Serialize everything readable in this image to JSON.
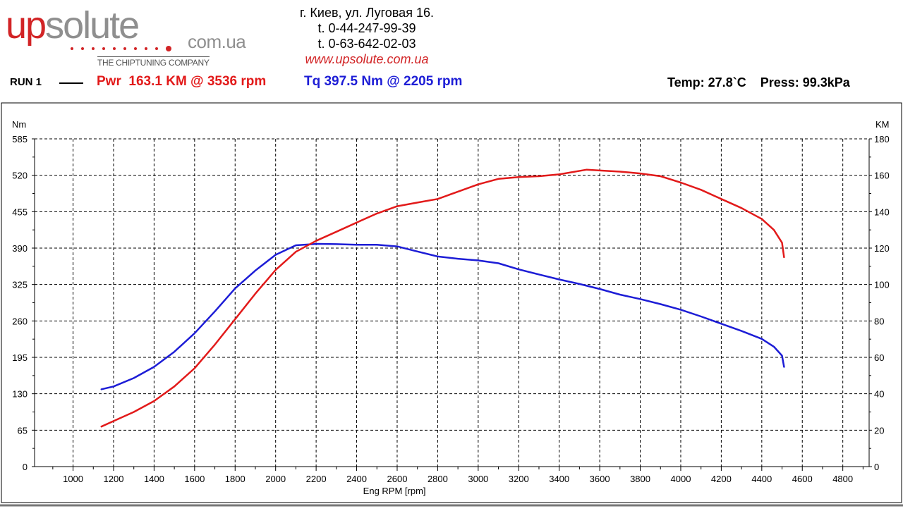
{
  "brand": {
    "logo_up": "up",
    "logo_solute": "solute",
    "logo_domain": "com.ua",
    "tagline": "THE CHIPTUNING COMPANY",
    "red_color": "#d22426",
    "gray_color": "#8f8f8f"
  },
  "contact": {
    "address": "г. Киев, ул. Луговая 16.",
    "phone1": "t. 0-44-247-99-39",
    "phone2": "t. 0-63-642-02-03",
    "website": "www.upsolute.com.ua"
  },
  "run": {
    "label": "RUN 1",
    "power_summary": "Pwr  163.1 KM @ 3536 rpm",
    "torque_summary": "Tq 397.5 Nm @ 2205 rpm",
    "conditions": "Temp: 27.8`C    Press: 99.3kPa"
  },
  "chart_data": {
    "type": "line",
    "title": "",
    "xlabel": "Eng RPM [rpm]",
    "ylabel_left": "Nm",
    "ylabel_right": "KM",
    "xlim": [
      810,
      4930
    ],
    "ylim_left": [
      0,
      585
    ],
    "ylim_right": [
      0,
      180
    ],
    "x_ticks": [
      1000,
      1200,
      1400,
      1600,
      1800,
      2000,
      2200,
      2400,
      2600,
      2800,
      3000,
      3200,
      3400,
      3600,
      3800,
      4000,
      4200,
      4400,
      4600,
      4800
    ],
    "y_ticks_left": [
      0,
      65,
      130,
      195,
      260,
      325,
      390,
      455,
      520,
      585
    ],
    "y_ticks_right": [
      0,
      20,
      40,
      60,
      80,
      100,
      120,
      140,
      160,
      180
    ],
    "grid": true,
    "grid_style": "dashed",
    "series": [
      {
        "axis": "left",
        "color": "#1d1dd6",
        "x": [
          1140,
          1200,
          1300,
          1400,
          1500,
          1600,
          1700,
          1800,
          1900,
          2000,
          2100,
          2205,
          2300,
          2400,
          2500,
          2600,
          2700,
          2800,
          2900,
          3000,
          3100,
          3200,
          3300,
          3400,
          3500,
          3600,
          3700,
          3800,
          3900,
          4000,
          4100,
          4200,
          4300,
          4400,
          4460,
          4500,
          4510
        ],
        "values": [
          138,
          143,
          158,
          178,
          205,
          238,
          277,
          318,
          350,
          378,
          395,
          397.5,
          397,
          396,
          396,
          393,
          384,
          375,
          371,
          368,
          363,
          352,
          343,
          334,
          326,
          317,
          307,
          299,
          290,
          280,
          268,
          255,
          242,
          228,
          214,
          198,
          178
        ]
      },
      {
        "axis": "right",
        "color": "#e21a1a",
        "x": [
          1140,
          1200,
          1300,
          1400,
          1500,
          1600,
          1700,
          1800,
          1900,
          2000,
          2100,
          2200,
          2300,
          2400,
          2500,
          2600,
          2700,
          2800,
          2900,
          3000,
          3100,
          3200,
          3300,
          3400,
          3536,
          3600,
          3700,
          3800,
          3900,
          4000,
          4100,
          4200,
          4300,
          4400,
          4460,
          4500,
          4510
        ],
        "values": [
          22,
          25,
          30,
          36,
          44,
          54,
          67,
          81,
          95,
          108,
          118,
          124,
          129,
          134,
          139,
          143,
          145,
          147,
          151,
          155,
          158,
          159,
          159.5,
          160.5,
          163.1,
          162.6,
          162,
          161,
          159.5,
          156,
          152,
          147,
          142,
          136,
          130,
          123,
          115
        ]
      }
    ]
  }
}
